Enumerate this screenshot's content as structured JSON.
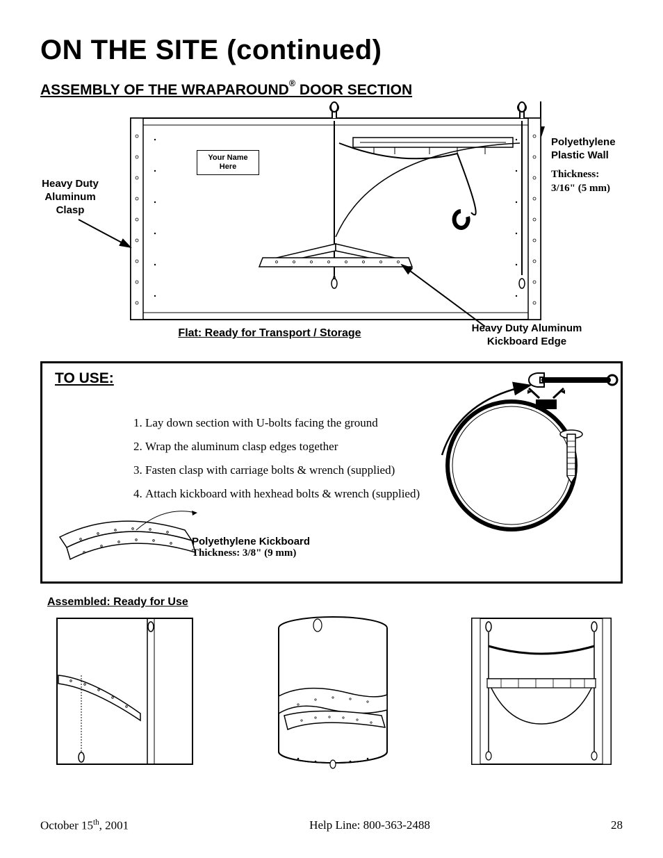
{
  "title": "ON THE SITE (continued)",
  "section_heading_prefix": "ASSEMBLY OF THE WRAPAROUND",
  "section_heading_reg": "®",
  "section_heading_suffix": " DOOR SECTION",
  "fig1": {
    "name_box": "Your Name\nHere",
    "clasp_label": "Heavy Duty\nAluminum\nClasp",
    "wall_label": "Polyethylene\nPlastic Wall",
    "thickness_a": "Thickness:",
    "thickness_b": "3/16\" (5 mm)",
    "flat_caption": "Flat: Ready for Transport / Storage",
    "kick_edge": "Heavy Duty Aluminum\nKickboard Edge"
  },
  "to_use": {
    "heading": "TO USE:",
    "steps": [
      "Lay down section with U-bolts facing the ground",
      "Wrap the aluminum clasp edges together",
      "Fasten clasp with carriage bolts & wrench (supplied)",
      "Attach kickboard with hexhead bolts & wrench (supplied)"
    ],
    "kick_label": "Polyethylene Kickboard",
    "kick_thick": "Thickness: 3/8\" (9 mm)"
  },
  "assembled_heading": "Assembled: Ready for Use",
  "footer": {
    "date_a": "October 15",
    "date_sup": "th",
    "date_b": ", 2001",
    "help": "Help Line: 800-363-2488",
    "page": "28"
  },
  "style": {
    "page_bg": "#ffffff",
    "ink": "#000000",
    "title_fontsize": 40,
    "heading_fontsize": 21,
    "body_fontsize": 17,
    "label_fontsize": 15,
    "border_width_heavy": 3,
    "border_width": 2.5,
    "svg_stroke": "#000000",
    "svg_fill_white": "#ffffff"
  }
}
